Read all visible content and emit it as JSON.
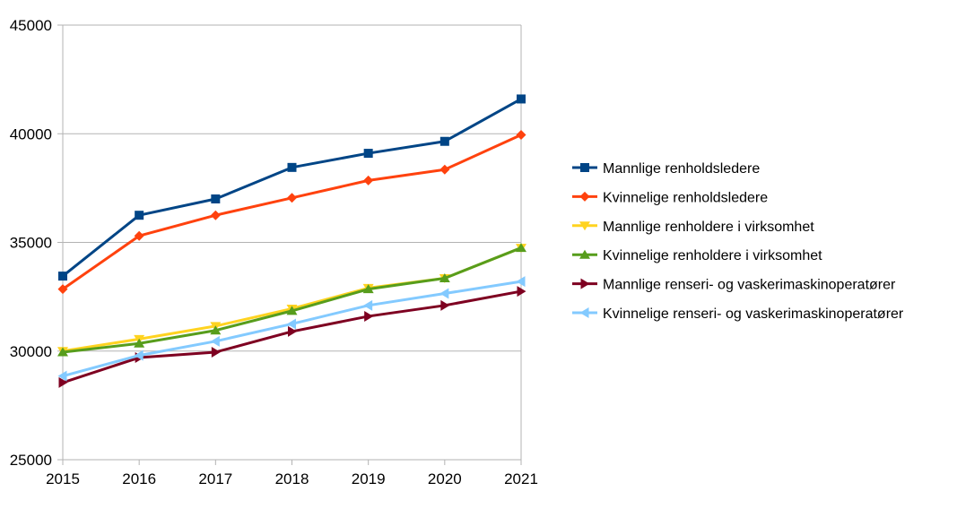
{
  "chart_data": {
    "type": "line",
    "title": "",
    "xlabel": "",
    "ylabel": "",
    "x": [
      "2015",
      "2016",
      "2017",
      "2018",
      "2019",
      "2020",
      "2021"
    ],
    "ylim": [
      25000,
      45000
    ],
    "yticks": [
      "25000",
      "30000",
      "35000",
      "40000",
      "45000"
    ],
    "grid": true,
    "legend_position": "right",
    "series": [
      {
        "name": "Mannlige renholdsledere",
        "color": "#004586",
        "marker": "square",
        "values": [
          33450,
          36250,
          37000,
          38450,
          39100,
          39650,
          41600
        ]
      },
      {
        "name": "Kvinnelige renholdsledere",
        "color": "#ff420e",
        "marker": "diamond",
        "values": [
          32850,
          35300,
          36250,
          37050,
          37850,
          38350,
          39950
        ]
      },
      {
        "name": "Mannlige renholdere i virksomhet",
        "color": "#ffd320",
        "marker": "triangle-down",
        "values": [
          30000,
          30550,
          31150,
          31950,
          32900,
          33350,
          34750
        ]
      },
      {
        "name": "Kvinnelige renholdere i virksomhet",
        "color": "#579d1c",
        "marker": "triangle-up",
        "values": [
          29950,
          30350,
          30950,
          31850,
          32850,
          33350,
          34750
        ]
      },
      {
        "name": "Mannlige renseri- og vaskerimaskinoperatører",
        "color": "#7e0021",
        "marker": "triangle-right",
        "values": [
          28550,
          29700,
          29950,
          30900,
          31600,
          32100,
          32750
        ]
      },
      {
        "name": "Kvinnelige renseri- og vaskerimaskinoperatører",
        "color": "#83caff",
        "marker": "triangle-left",
        "values": [
          28850,
          29800,
          30450,
          31250,
          32100,
          32650,
          33200
        ]
      }
    ]
  }
}
